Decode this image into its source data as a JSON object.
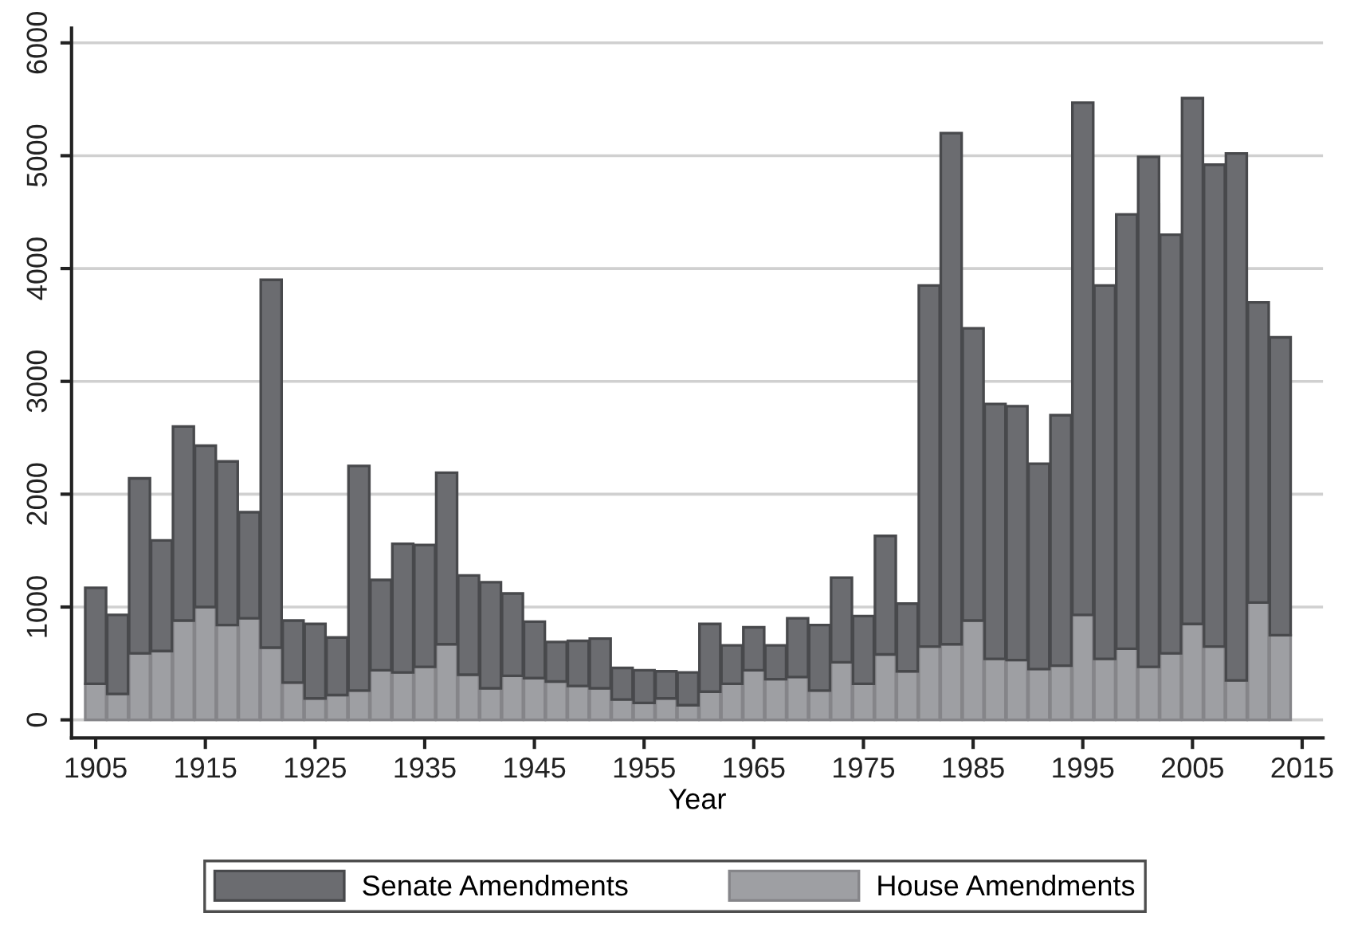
{
  "chart_data": {
    "type": "bar",
    "stacked": true,
    "xlabel": "Year",
    "x": [
      1905,
      1907,
      1909,
      1911,
      1913,
      1915,
      1917,
      1919,
      1921,
      1923,
      1925,
      1927,
      1929,
      1931,
      1933,
      1935,
      1937,
      1939,
      1941,
      1943,
      1945,
      1947,
      1949,
      1951,
      1953,
      1955,
      1957,
      1959,
      1961,
      1963,
      1965,
      1967,
      1969,
      1971,
      1973,
      1975,
      1977,
      1979,
      1981,
      1983,
      1985,
      1987,
      1989,
      1991,
      1993,
      1995,
      1997,
      1999,
      2001,
      2003,
      2005,
      2007,
      2009,
      2011,
      2013
    ],
    "series": [
      {
        "name": "House Amendments",
        "color": "#9e9fa3",
        "values": [
          320,
          230,
          590,
          610,
          880,
          1000,
          840,
          900,
          640,
          330,
          190,
          220,
          260,
          440,
          420,
          470,
          670,
          400,
          280,
          390,
          370,
          340,
          300,
          280,
          180,
          150,
          190,
          130,
          250,
          320,
          440,
          360,
          380,
          260,
          510,
          320,
          580,
          430,
          650,
          670,
          880,
          540,
          530,
          450,
          480,
          930,
          540,
          630,
          470,
          590,
          850,
          650,
          350,
          1040,
          750
        ]
      },
      {
        "name": "Senate Amendments",
        "color": "#6b6c70",
        "values": [
          850,
          700,
          1550,
          980,
          1720,
          1430,
          1450,
          940,
          3260,
          550,
          660,
          510,
          1990,
          800,
          1140,
          1080,
          1520,
          880,
          940,
          730,
          500,
          350,
          400,
          440,
          280,
          290,
          240,
          290,
          600,
          340,
          380,
          300,
          520,
          580,
          750,
          600,
          1050,
          600,
          3200,
          4530,
          2590,
          2260,
          2250,
          1820,
          2220,
          4540,
          3310,
          3850,
          4520,
          3710,
          4660,
          4270,
          4670,
          2660,
          2640
        ]
      }
    ],
    "xlim": [
      1902.8,
      2016.9
    ],
    "xticks": [
      1905,
      1915,
      1925,
      1935,
      1945,
      1955,
      1965,
      1975,
      1985,
      1995,
      2005,
      2015
    ],
    "ylim": [
      -160,
      6130
    ],
    "yticks": [
      0,
      1000,
      2000,
      3000,
      4000,
      5000,
      6000
    ],
    "grid": "y",
    "legend": "bottom"
  }
}
